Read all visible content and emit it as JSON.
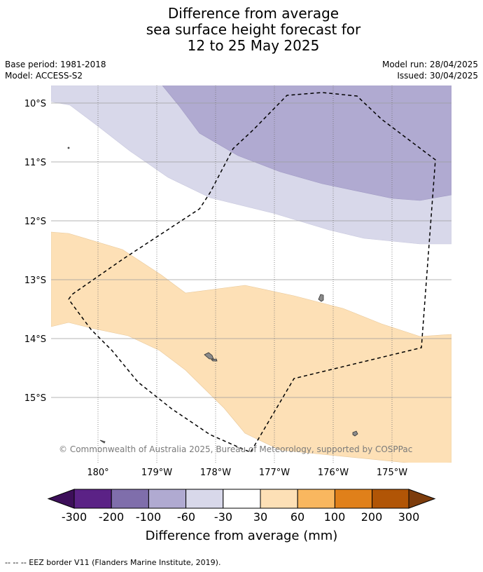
{
  "title": {
    "line1": "Difference from average",
    "line2": "sea surface height forecast for",
    "line3": "12 to 25 May 2025"
  },
  "meta": {
    "base_period": "Base period: 1981-2018",
    "model": "Model: ACCESS-S2",
    "model_run": "Model run: 28/04/2025",
    "issued": "Issued: 30/04/2025"
  },
  "map": {
    "lat_labels": [
      "10°S",
      "11°S",
      "12°S",
      "13°S",
      "14°S",
      "15°S"
    ],
    "lon_labels": [
      "180°",
      "179°W",
      "178°W",
      "177°W",
      "176°W",
      "175°W"
    ],
    "copyright": "© Commonwealth of Australia 2025, Bureau of Meteorology, supported by COSPPac"
  },
  "legend": {
    "labels": [
      "-300",
      "-200",
      "-100",
      "-60",
      "-30",
      "30",
      "60",
      "100",
      "200",
      "300"
    ],
    "colors": [
      "#3d0f5a",
      "#5b2286",
      "#7f6eab",
      "#b0aad1",
      "#d8d8ea",
      "#ffffff",
      "#fde0b6",
      "#f9b75f",
      "#e0801a",
      "#b15506",
      "#7d3c0c"
    ],
    "title": "Difference from average (mm)"
  },
  "footer": "--  --  -- EEZ border V11 (Flanders Marine Institute, 2019)."
}
